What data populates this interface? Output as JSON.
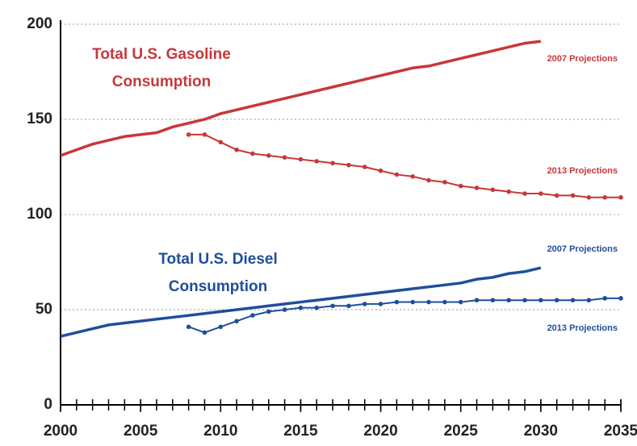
{
  "chart_data": {
    "type": "line",
    "annotations": [
      {
        "lines": [
          "Total U.S. Gasoline",
          "Consumption"
        ],
        "color": "#c8373a"
      },
      {
        "lines": [
          "Total U.S. Diesel",
          "Consumption"
        ],
        "color": "#1f4e9c"
      }
    ],
    "x": [
      2000,
      2001,
      2002,
      2003,
      2004,
      2005,
      2006,
      2007,
      2008,
      2009,
      2010,
      2011,
      2012,
      2013,
      2014,
      2015,
      2016,
      2017,
      2018,
      2019,
      2020,
      2021,
      2022,
      2023,
      2024,
      2025,
      2026,
      2027,
      2028,
      2029,
      2030,
      2031,
      2032,
      2033,
      2034,
      2035
    ],
    "xlim": [
      2000,
      2035
    ],
    "xticks": [
      2000,
      2005,
      2010,
      2015,
      2020,
      2025,
      2030,
      2035
    ],
    "ylim": [
      0,
      200
    ],
    "yticks": [
      0,
      50,
      100,
      150,
      200
    ],
    "grid": true,
    "series": [
      {
        "name": "2007 Projections",
        "color": "#c8373a",
        "markers": false,
        "values": [
          131,
          134,
          137,
          139,
          141,
          142,
          143,
          146,
          148,
          150,
          153,
          155,
          157,
          159,
          161,
          163,
          165,
          167,
          169,
          171,
          173,
          175,
          177,
          178,
          180,
          182,
          184,
          186,
          188,
          190,
          191,
          null,
          null,
          null,
          null,
          null
        ]
      },
      {
        "name": "2013 Projections",
        "color": "#c8373a",
        "markers": true,
        "values": [
          null,
          null,
          null,
          null,
          null,
          null,
          null,
          null,
          142,
          142,
          138,
          134,
          132,
          131,
          130,
          129,
          128,
          127,
          126,
          125,
          123,
          121,
          120,
          118,
          117,
          115,
          114,
          113,
          112,
          111,
          111,
          110,
          110,
          109,
          109,
          109
        ]
      },
      {
        "name": "2007 Projections",
        "color": "#1f4e9c",
        "markers": false,
        "values": [
          36,
          38,
          40,
          42,
          43,
          44,
          45,
          46,
          47,
          48,
          49,
          50,
          51,
          52,
          53,
          54,
          55,
          56,
          57,
          58,
          59,
          60,
          61,
          62,
          63,
          64,
          66,
          67,
          69,
          70,
          72,
          null,
          null,
          null,
          null,
          null
        ]
      },
      {
        "name": "2013 Projections",
        "color": "#1f4e9c",
        "markers": true,
        "values": [
          null,
          null,
          null,
          null,
          null,
          null,
          null,
          null,
          41,
          38,
          41,
          44,
          47,
          49,
          50,
          51,
          51,
          52,
          52,
          53,
          53,
          54,
          54,
          54,
          54,
          54,
          55,
          55,
          55,
          55,
          55,
          55,
          55,
          55,
          56,
          56
        ]
      }
    ]
  }
}
